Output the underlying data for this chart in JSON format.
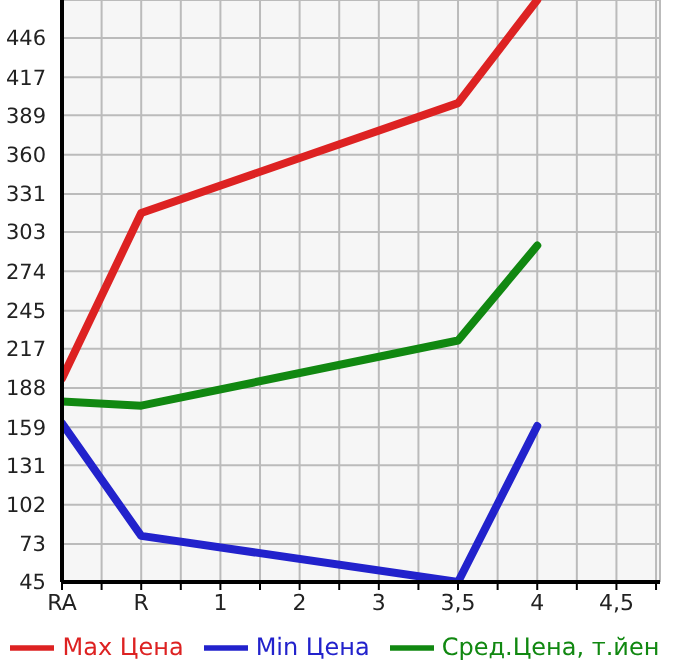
{
  "chart_data": {
    "type": "line",
    "categories": [
      "RA",
      "R",
      "1",
      "2",
      "3",
      "3,5",
      "4",
      "4,5"
    ],
    "series": [
      {
        "name": "Max Цена",
        "color": "#dd2222",
        "values": [
          195,
          317,
          null,
          null,
          null,
          398,
          474,
          null
        ]
      },
      {
        "name": "Min Цена",
        "color": "#2222cc",
        "values": [
          162,
          79,
          null,
          null,
          null,
          45,
          160,
          null
        ]
      },
      {
        "name": "Сред.Цена, т.йен",
        "color": "#118811",
        "values": [
          178,
          175,
          null,
          null,
          null,
          223,
          293,
          null
        ]
      }
    ],
    "ylim": [
      45,
      474
    ],
    "yticks": [
      45,
      73,
      102,
      131,
      159,
      188,
      217,
      245,
      274,
      303,
      331,
      360,
      389,
      417,
      446
    ],
    "grid": true,
    "legend": "bottom",
    "marker": "none",
    "line_style": "solid"
  }
}
